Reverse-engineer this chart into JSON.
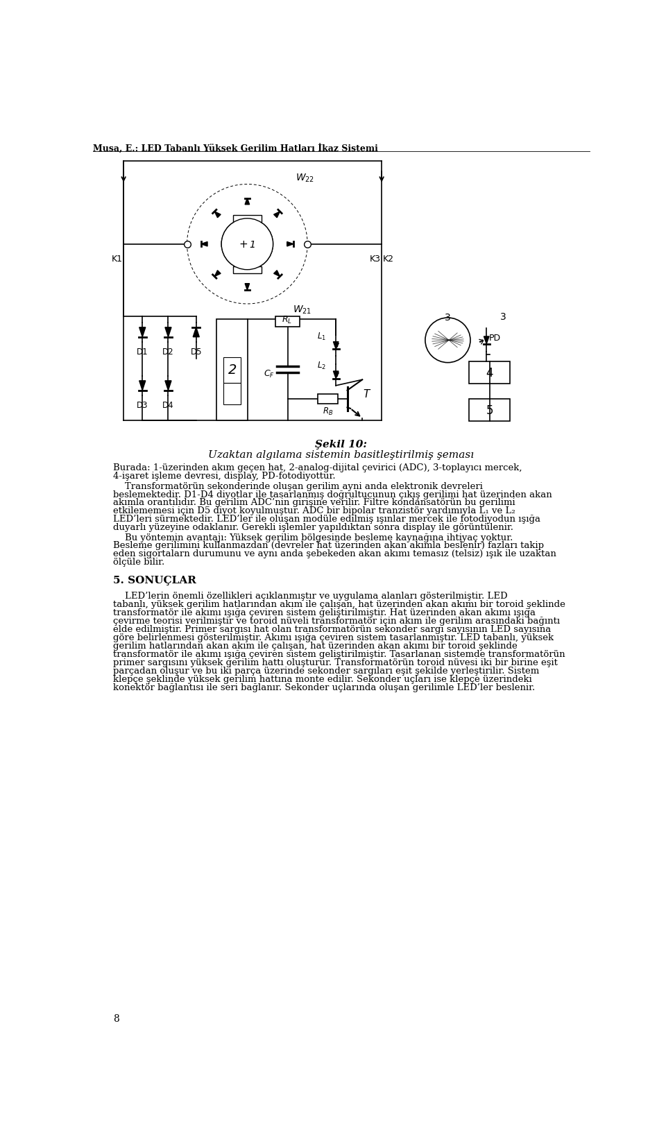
{
  "header": "Musa, E.: LED Tabanlı Yüksek Gerilim Hatları İkaz Sistemi",
  "figure_caption_bold": "Şekil 10:",
  "figure_caption_italic": "Uzaktan algılama sistemin basitleştirilmiş şeması",
  "para1_line1": "Burada: 1-üzerinden akım geçen hat, 2-analog-dijital çevirici (ADC), 3-toplayıcı mercek,",
  "para1_line2": "4-işaret işleme devresi, display, PD-fotodiyottur.",
  "para2_lines": [
    "    Transformatörün sekonderinde oluşan gerilim ayni anda elektronik devreleri",
    "beslemektedir. D1-D4 diyotlar ile tasarlanmış doğrultucunun çıkış gerilimi hat üzerinden akan",
    "akımla orantılıdır. Bu gerilim ADC’nin girişine verilir. Filtre kondansatörün bu gerilimi",
    "etkilememesi için D5 diyot koyulmuştur. ADC bir bipolar tranzistör yardımıyla L₁ ve L₂",
    "LED’leri sürmektedir. LED’ler ile oluşan modüle edilmiş ışınlar mercek ile fotodiyodun ışığa",
    "duyarlı yüzeyine odaklanır. Gerekli işlemler yapıldıktan sonra display ile görüntülenir."
  ],
  "para3_lines": [
    "    Bu yöntemin avantajı: Yüksek gerilim bölgesinde besleme kaynağına ihtiyaç yoktur.",
    "Besleme gerilimini kullanmazdan (devreler hat üzerinden akan akımla beslenir) fazları takip",
    "eden sigortalarn durumunu ve aynı anda şebekeden akan akımı temasız (telsiz) ışık ile uzaktan",
    "ölçüle bilir."
  ],
  "section_title": "5. SONUÇLAR",
  "para4_lines": [
    "    LED’lerin önemli özellikleri açıklanmıştır ve uygulama alanları gösterilmiştir. LED",
    "tabanlı, yüksek gerilim hatlarından akım ile çalışan, hat üzerinden akan akımı bir toroid şeklinde",
    "transformatör ile akımı ışığa çeviren sistem geliştirilmiştir. Hat üzerinden akan akımı ışığa",
    "çevirme teorisi verilmiştir ve toroid nüveli transformatör için akım ile gerilim arasındaki bağıntı",
    "elde edilmiştir. Primer sargısı hat olan transformatörün sekonder sargı sayısının LED sayısına",
    "göre belirlenmesi gösterilmiştir. Akımı ışığa çeviren sistem tasarlanmıştır. LED tabanlı, yüksek",
    "gerilim hatlarından akan akım ile çalışan, hat üzerinden akan akımı bir toroid şeklinde",
    "transformatör ile akımı ışığa çeviren sistem geliştirilmiştir. Tasarlanan sistemde transformatörün",
    "primer sargısını yüksek gerilim hattı oluşturur. Transformatörün toroid nüvesi iki bir birine eşit",
    "parçadan oluşur ve bu iki parça üzerinde sekonder sargıları eşit şekilde yerleştirilir. Sistem",
    "klepçe şeklinde yüksek gerilim hattına monte edilir. Sekonder uçları ise klepçe üzerindeki",
    "konektör bağlantısı ile seri bağlanır. Sekonder uçlarında oluşan gerilimle LED’ler beslenir."
  ],
  "page_number": "8",
  "bg_color": "#ffffff",
  "text_color": "#000000"
}
